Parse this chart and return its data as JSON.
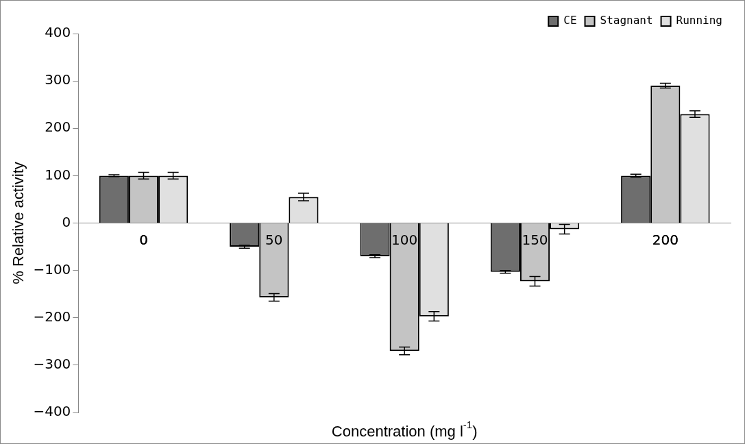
{
  "chart_data": {
    "type": "bar",
    "xlabel": "Concentration (mg l$^{-1}$)",
    "ylabel": "% Relative activity",
    "categories": [
      "0",
      "50",
      "100",
      "150",
      "200"
    ],
    "series": [
      {
        "name": "CE",
        "color": "#6e6e6e",
        "values": [
          100,
          -50,
          -70,
          -103,
          100
        ],
        "errors": [
          2,
          3,
          3,
          3,
          3
        ]
      },
      {
        "name": "Stagnant",
        "color": "#c4c4c4",
        "values": [
          100,
          -157,
          -270,
          -123,
          290
        ],
        "errors": [
          7,
          8,
          8,
          10,
          5
        ]
      },
      {
        "name": "Running",
        "color": "#e0e0e0",
        "values": [
          100,
          55,
          -197,
          -13,
          230
        ],
        "errors": [
          7,
          8,
          10,
          10,
          7
        ]
      }
    ],
    "ylim": [
      -400,
      400
    ],
    "yticks": [
      -400,
      -300,
      -200,
      -100,
      0,
      100,
      200,
      300,
      400
    ],
    "grid": false,
    "legend": "top right"
  }
}
